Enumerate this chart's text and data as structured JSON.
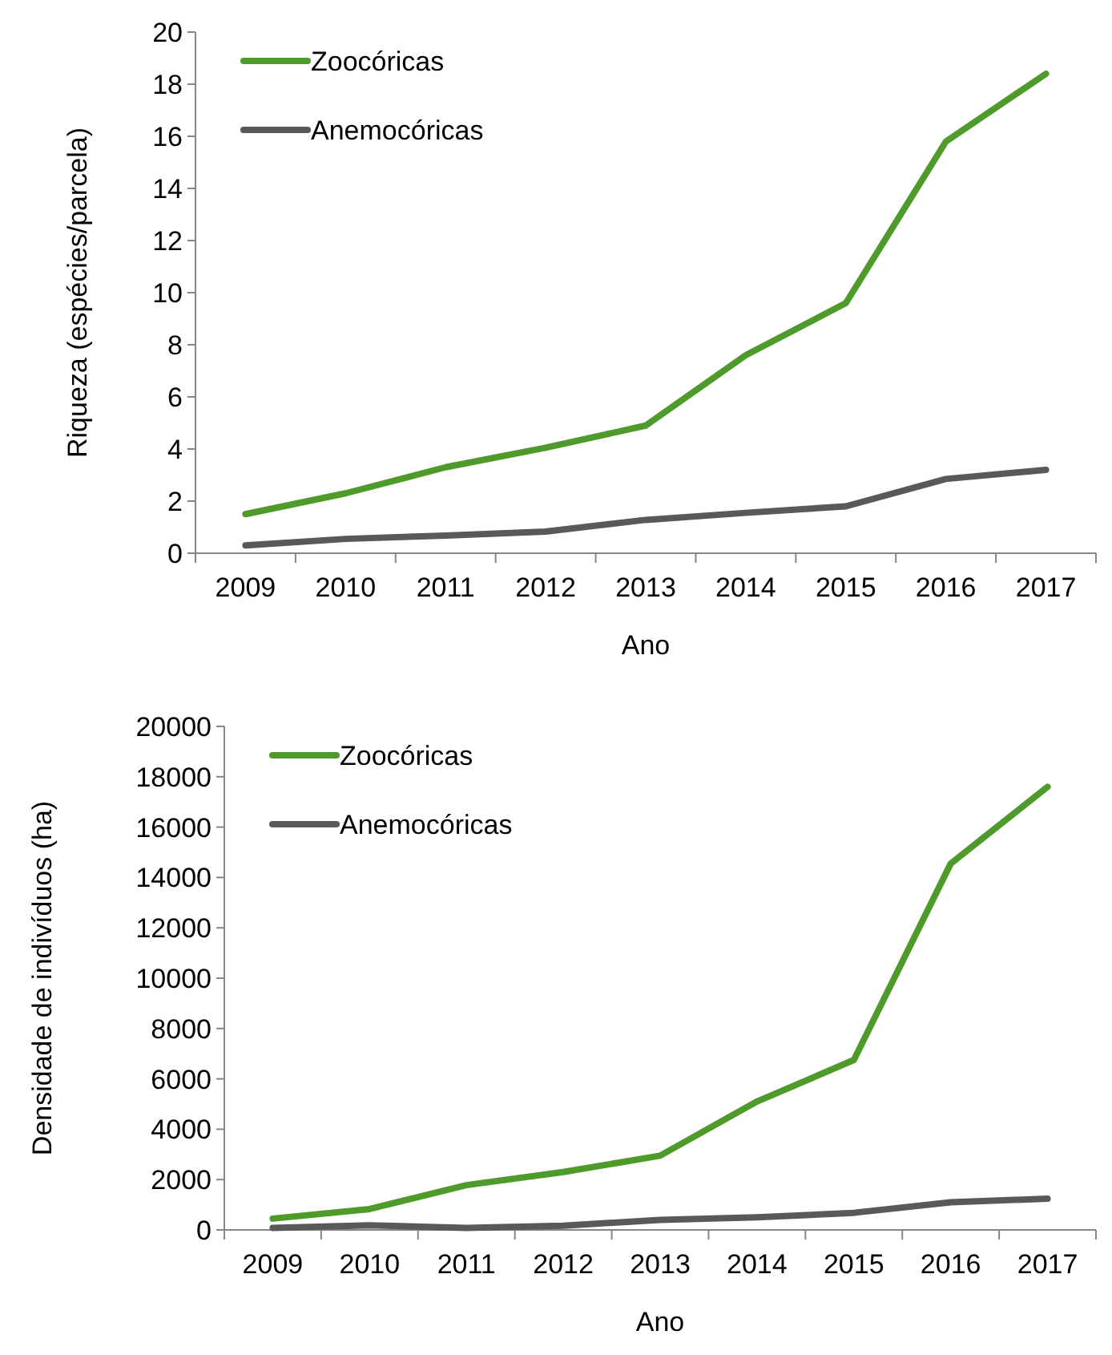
{
  "chart_data": [
    {
      "type": "line",
      "categories": [
        "2009",
        "2010",
        "2011",
        "2012",
        "2013",
        "2014",
        "2015",
        "2016",
        "2017"
      ],
      "xlabel": "Ano",
      "ylabel": "Riqueza (espécies/parcela)",
      "ylim": [
        0,
        20
      ],
      "yticks": [
        0,
        2,
        4,
        6,
        8,
        10,
        12,
        14,
        16,
        18,
        20
      ],
      "legend": "top left",
      "marker": "none",
      "line_style": "solid",
      "grid": false,
      "series": [
        {
          "name": "Zoocóricas",
          "color": "#4e9a2a",
          "values": [
            1.5,
            2.3,
            3.3,
            4.05,
            4.9,
            7.6,
            9.6,
            15.8,
            18.4
          ]
        },
        {
          "name": "Anemocóricas",
          "color": "#595959",
          "values": [
            0.3,
            0.55,
            0.68,
            0.83,
            1.28,
            1.55,
            1.8,
            2.85,
            3.2
          ]
        }
      ]
    },
    {
      "type": "line",
      "categories": [
        "2009",
        "2010",
        "2011",
        "2012",
        "2013",
        "2014",
        "2015",
        "2016",
        "2017"
      ],
      "xlabel": "Ano",
      "ylabel": "Densidade de indivíduos (ha)",
      "ylim": [
        0,
        20000
      ],
      "yticks": [
        0,
        2000,
        4000,
        6000,
        8000,
        10000,
        12000,
        14000,
        16000,
        18000,
        20000
      ],
      "legend": "top left",
      "marker": "none",
      "line_style": "solid",
      "grid": false,
      "series": [
        {
          "name": "Zoocóricas",
          "color": "#4e9a2a",
          "values": [
            450,
            830,
            1780,
            2300,
            2950,
            5100,
            6750,
            14550,
            17600
          ]
        },
        {
          "name": "Anemocóricas",
          "color": "#595959",
          "values": [
            80,
            180,
            80,
            170,
            400,
            500,
            680,
            1100,
            1240
          ]
        }
      ]
    }
  ]
}
